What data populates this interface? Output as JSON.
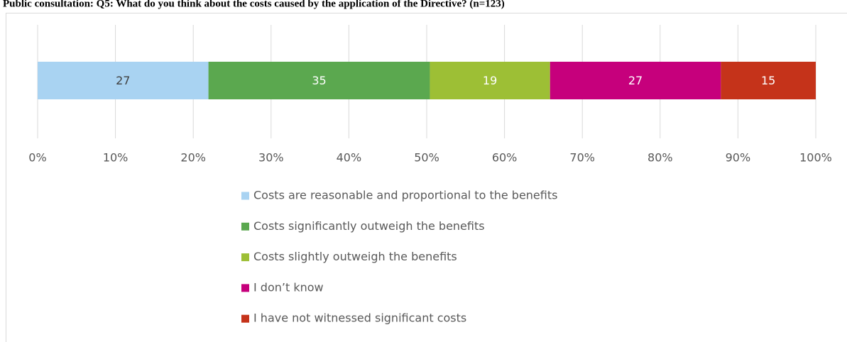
{
  "chart_data": {
    "type": "stacked_percent_bar",
    "title": "Public consultation: Q5: What do you think about the costs caused by the application of the Directive? (n=123)",
    "series": [
      {
        "name": "Costs are reasonable and proportional to the benefits",
        "color": "#a9d3f2",
        "label_color": "#404040",
        "values": [
          27
        ]
      },
      {
        "name": "Costs significantly outweigh the benefits",
        "color": "#5ba84f",
        "label_color": "#ffffff",
        "values": [
          35
        ]
      },
      {
        "name": "Costs slightly outweigh the benefits",
        "color": "#9dbf35",
        "label_color": "#ffffff",
        "values": [
          19
        ]
      },
      {
        "name": "I don’t know",
        "color": "#c6007c",
        "label_color": "#ffffff",
        "values": [
          27
        ]
      },
      {
        "name": "I have not witnessed significant costs",
        "color": "#c5331a",
        "label_color": "#ffffff",
        "values": [
          15
        ]
      }
    ],
    "xlim": [
      0,
      100
    ],
    "xticks": [
      {
        "value": 0,
        "label": "0%"
      },
      {
        "value": 10,
        "label": "10%"
      },
      {
        "value": 20,
        "label": "20%"
      },
      {
        "value": 30,
        "label": "30%"
      },
      {
        "value": 40,
        "label": "40%"
      },
      {
        "value": 50,
        "label": "50%"
      },
      {
        "value": 60,
        "label": "60%"
      },
      {
        "value": 70,
        "label": "70%"
      },
      {
        "value": 80,
        "label": "80%"
      },
      {
        "value": 90,
        "label": "90%"
      },
      {
        "value": 100,
        "label": "100%"
      }
    ],
    "grid": true,
    "legend": "bottom"
  }
}
